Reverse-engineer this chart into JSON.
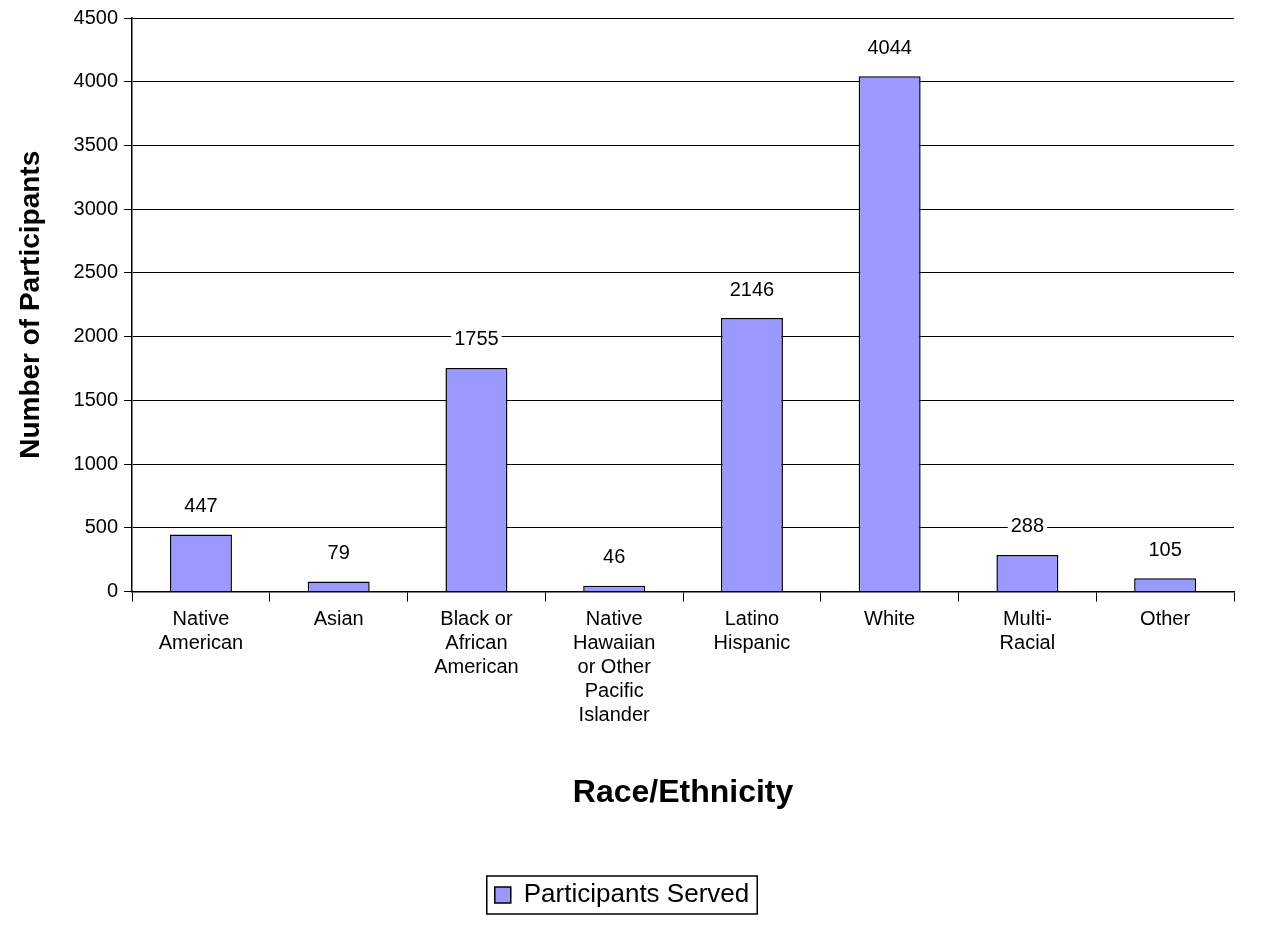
{
  "chart_data": {
    "type": "bar",
    "xlabel": "Race/Ethnicity",
    "ylabel": "Number of Participants",
    "categories": [
      "Native American",
      "Asian",
      "Black or African American",
      "Native Hawaiian or Other Pacific Islander",
      "Latino Hispanic",
      "White",
      "Multi-Racial",
      "Other"
    ],
    "series": [
      {
        "name": "Participants Served",
        "color": "#9999ff",
        "values": [
          447,
          79,
          1755,
          46,
          2146,
          4044,
          288,
          105
        ]
      }
    ],
    "ylim": [
      0,
      4500
    ],
    "yticks": [
      0,
      500,
      1000,
      1500,
      2000,
      2500,
      3000,
      3500,
      4000,
      4500
    ],
    "grid": "y",
    "legend": "bottom",
    "data_labels": true
  }
}
